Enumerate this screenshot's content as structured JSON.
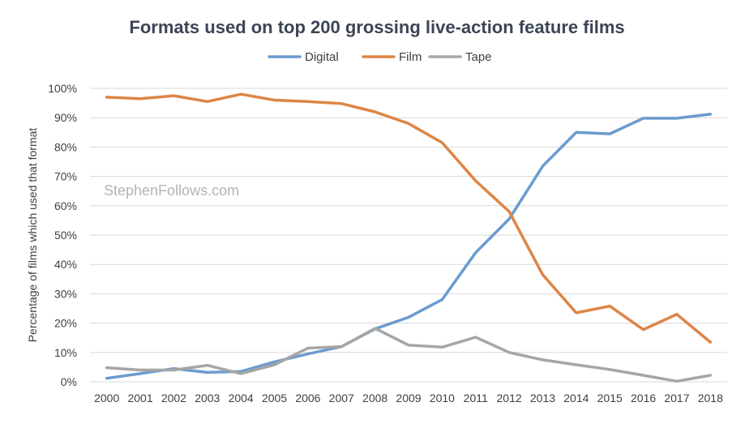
{
  "chart_data": {
    "type": "line",
    "title": "Formats used on top 200 grossing live-action feature films",
    "xlabel": "",
    "ylabel": "Percentage of films which used that format",
    "watermark": "StephenFollows.com",
    "legend_position": "top",
    "grid": true,
    "ylim": [
      0,
      100
    ],
    "y_ticks": [
      {
        "value": 0,
        "label": "0%"
      },
      {
        "value": 10,
        "label": "10%"
      },
      {
        "value": 20,
        "label": "20%"
      },
      {
        "value": 30,
        "label": "30%"
      },
      {
        "value": 40,
        "label": "40%"
      },
      {
        "value": 50,
        "label": "50%"
      },
      {
        "value": 60,
        "label": "60%"
      },
      {
        "value": 70,
        "label": "70%"
      },
      {
        "value": 80,
        "label": "80%"
      },
      {
        "value": 90,
        "label": "90%"
      },
      {
        "value": 100,
        "label": "100%"
      }
    ],
    "categories": [
      "2000",
      "2001",
      "2002",
      "2003",
      "2004",
      "2005",
      "2006",
      "2007",
      "2008",
      "2009",
      "2010",
      "2011",
      "2012",
      "2013",
      "2014",
      "2015",
      "2016",
      "2017",
      "2018"
    ],
    "series": [
      {
        "name": "Digital",
        "color": "#6a9bd0",
        "values": [
          1.2,
          2.8,
          4.5,
          3.2,
          3.5,
          6.8,
          9.5,
          12.0,
          18.0,
          22.0,
          28.0,
          44.0,
          55.5,
          73.5,
          85.0,
          84.5,
          89.8,
          89.8,
          91.2
        ]
      },
      {
        "name": "Film",
        "color": "#dd8545",
        "values": [
          97.0,
          96.5,
          97.5,
          95.5,
          98.0,
          96.0,
          95.5,
          94.8,
          92.0,
          88.0,
          81.5,
          68.5,
          58.0,
          36.5,
          23.5,
          25.8,
          17.8,
          23.0,
          13.5
        ]
      },
      {
        "name": "Tape",
        "color": "#a6a6a6",
        "values": [
          4.8,
          4.0,
          4.0,
          5.6,
          2.8,
          5.8,
          11.5,
          12.0,
          18.2,
          12.5,
          11.8,
          15.2,
          10.0,
          7.5,
          5.8,
          4.2,
          2.2,
          0.2,
          2.2
        ]
      }
    ]
  }
}
